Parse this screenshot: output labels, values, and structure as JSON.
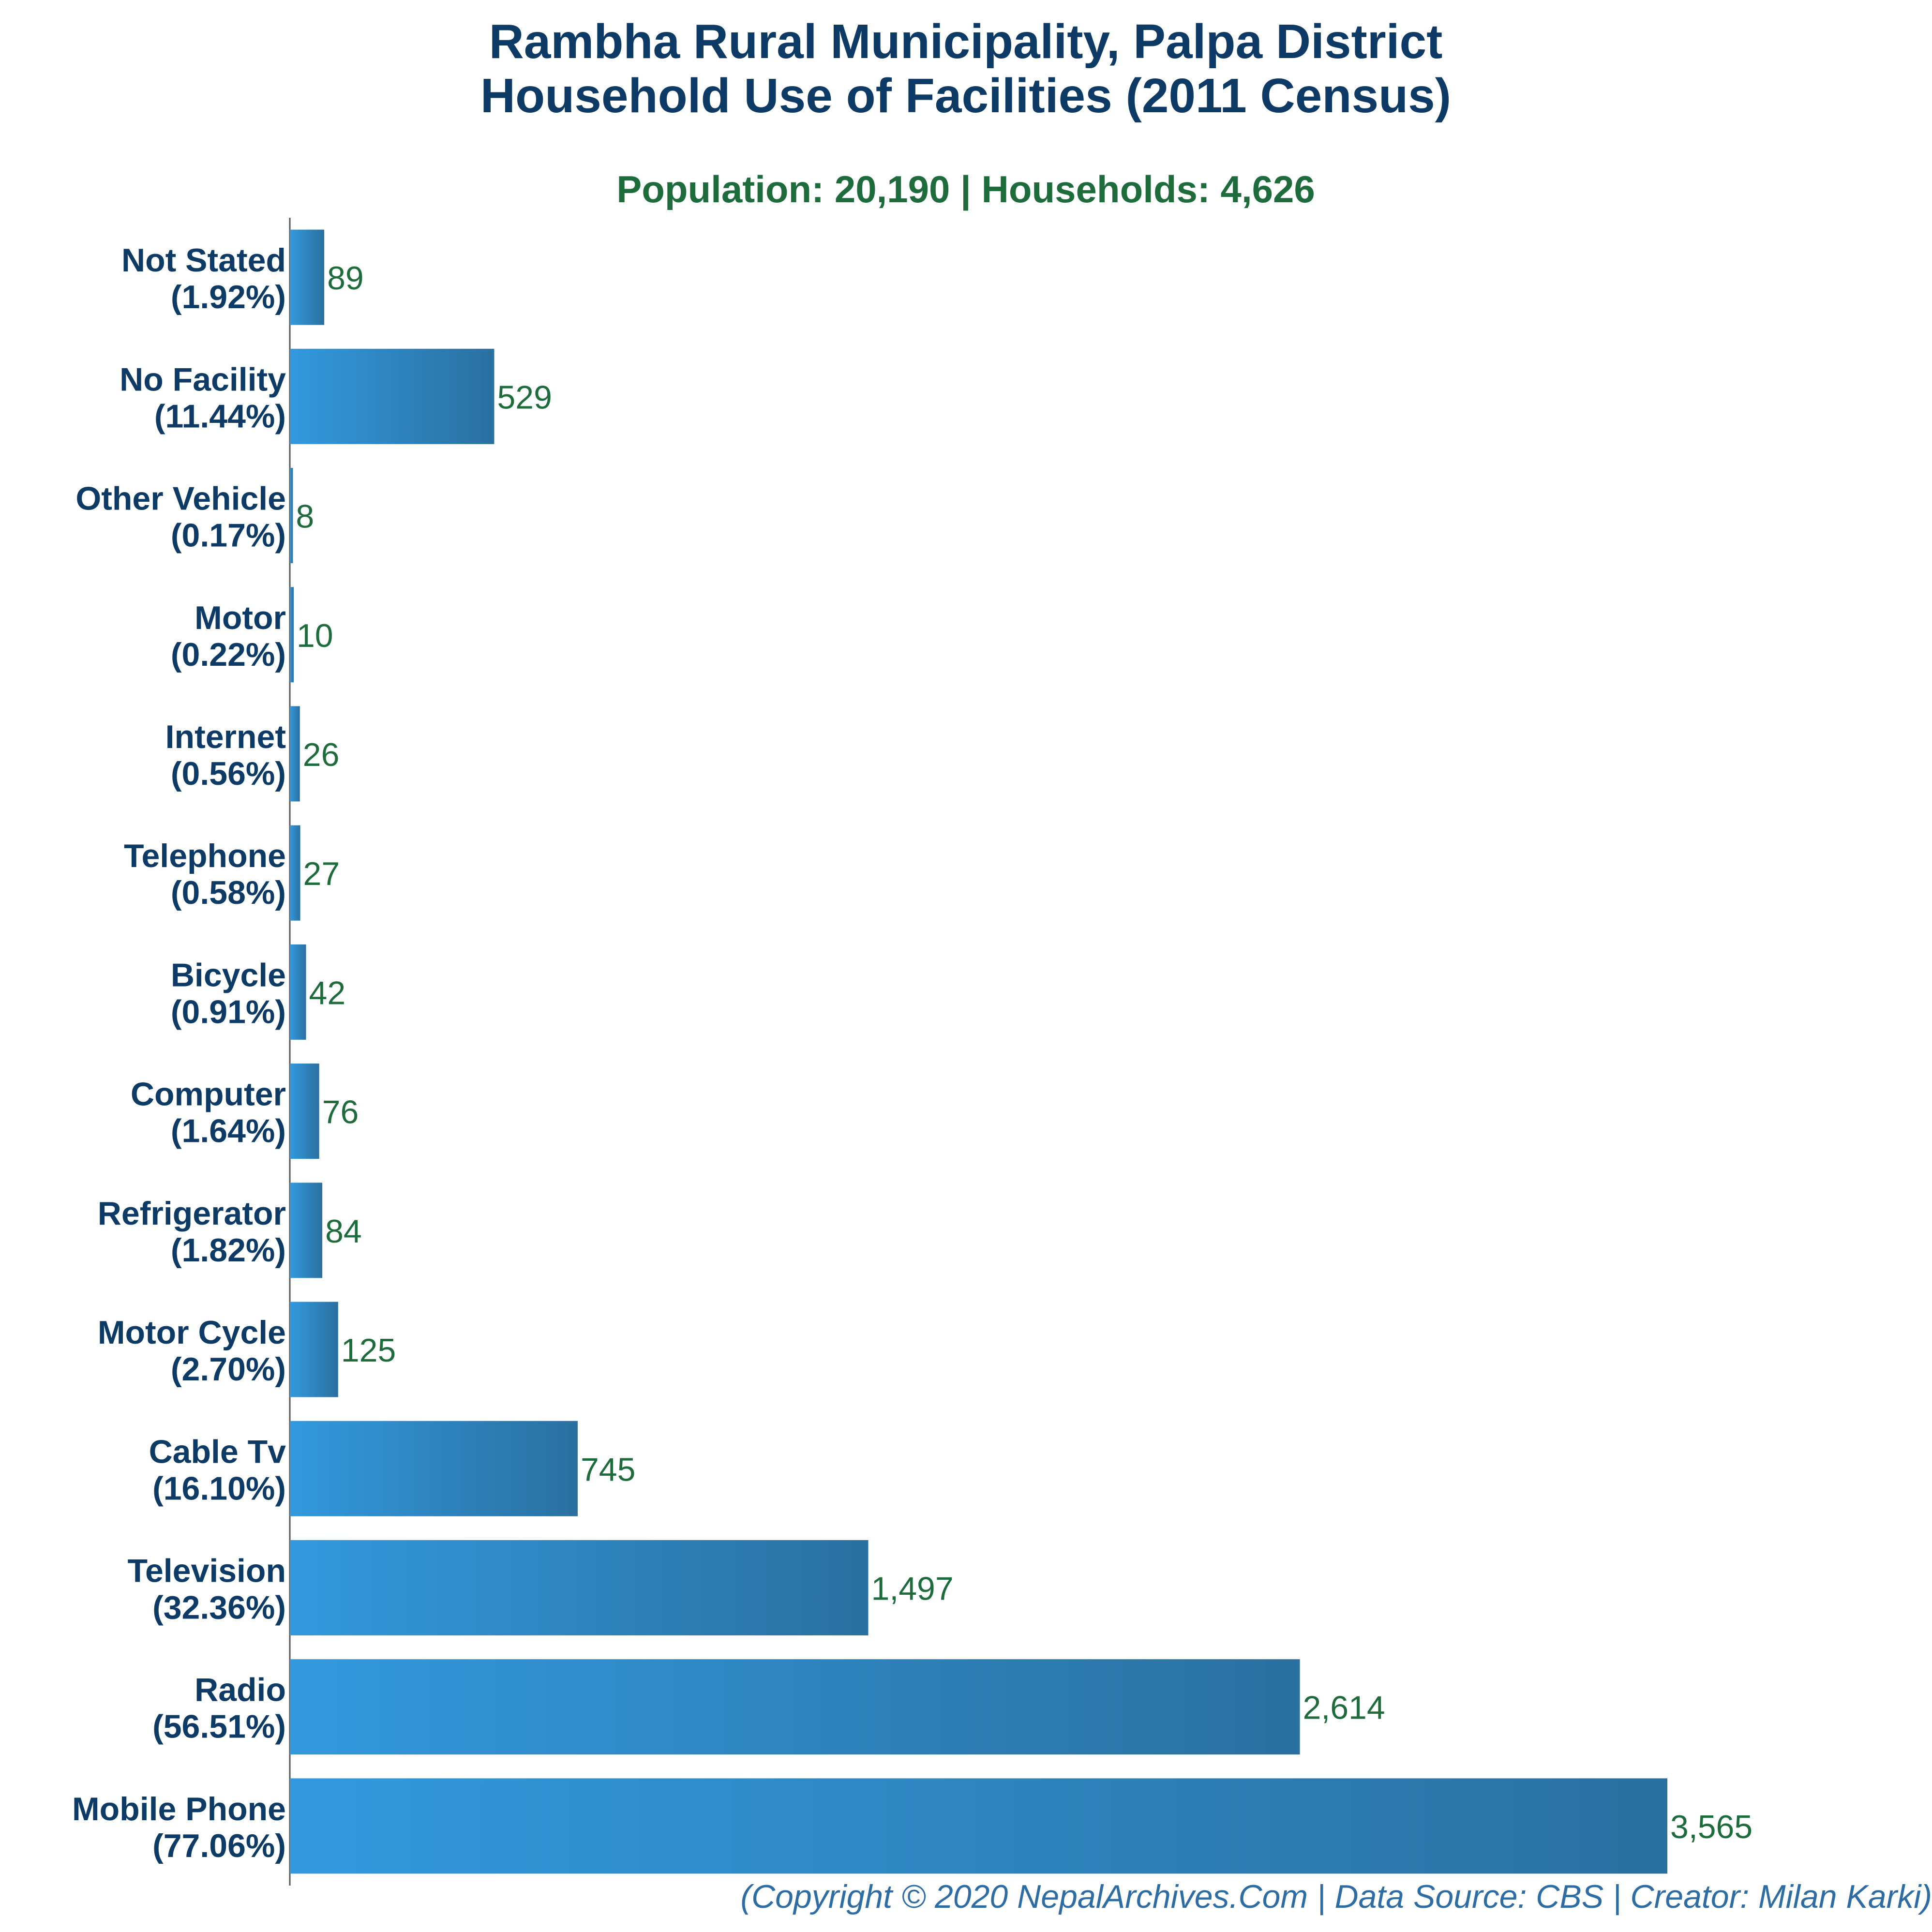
{
  "chart_data": {
    "type": "bar",
    "orientation": "horizontal",
    "title_lines": [
      "Rambha Rural Municipality, Palpa District",
      "Household Use of Facilities (2011 Census)"
    ],
    "subtitle": "Population: 20,190 | Households: 4,626",
    "categories": [
      {
        "name": "Not Stated",
        "pct": "(1.92%)"
      },
      {
        "name": "No Facility",
        "pct": "(11.44%)"
      },
      {
        "name": "Other Vehicle",
        "pct": "(0.17%)"
      },
      {
        "name": "Motor",
        "pct": "(0.22%)"
      },
      {
        "name": "Internet",
        "pct": "(0.56%)"
      },
      {
        "name": "Telephone",
        "pct": "(0.58%)"
      },
      {
        "name": "Bicycle",
        "pct": "(0.91%)"
      },
      {
        "name": "Computer",
        "pct": "(1.64%)"
      },
      {
        "name": "Refrigerator",
        "pct": "(1.82%)"
      },
      {
        "name": "Motor Cycle",
        "pct": "(2.70%)"
      },
      {
        "name": "Cable Tv",
        "pct": "(16.10%)"
      },
      {
        "name": "Television",
        "pct": "(32.36%)"
      },
      {
        "name": "Radio",
        "pct": "(56.51%)"
      },
      {
        "name": "Mobile Phone",
        "pct": "(77.06%)"
      }
    ],
    "values": [
      89,
      529,
      8,
      10,
      26,
      27,
      42,
      76,
      84,
      125,
      745,
      1497,
      2614,
      3565
    ],
    "value_labels": [
      "89",
      "529",
      "8",
      "10",
      "26",
      "27",
      "42",
      "76",
      "84",
      "125",
      "745",
      "1,497",
      "2,614",
      "3,565"
    ],
    "xlim": [
      0,
      3565
    ],
    "grid": false,
    "colors": {
      "bar_light": "#3399dd",
      "bar_dark": "#2a70a0",
      "title": "#0d3b66",
      "subtitle": "#1e6b3c",
      "value": "#1e6b3c",
      "footer": "#2e6da4",
      "axis": "#555555"
    }
  },
  "footer": "(Copyright © 2020 NepalArchives.Com | Data Source: CBS | Creator: Milan Karki)"
}
